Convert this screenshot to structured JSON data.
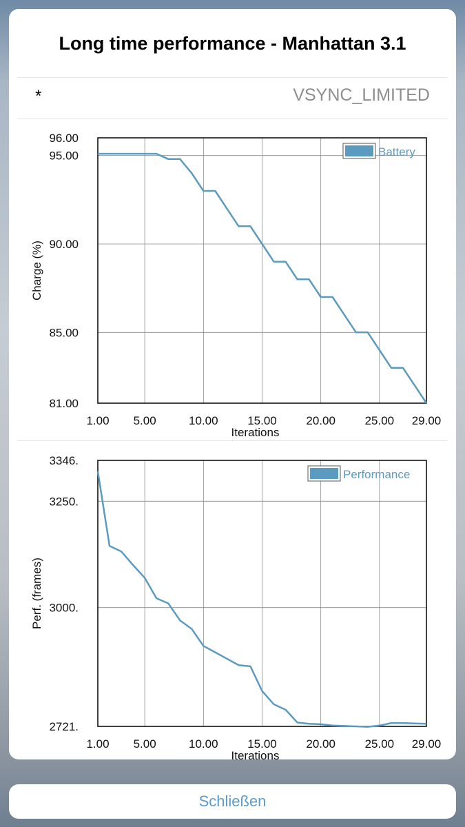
{
  "dialog": {
    "title": "Long time performance - Manhattan 3.1",
    "info_marker": "*",
    "info_mode": "VSYNC_LIMITED",
    "close_label": "Schließen"
  },
  "colors": {
    "series": "#5b9bc0",
    "accent": "#5c9bcf"
  },
  "chart_data": [
    {
      "type": "line",
      "ylabel": "Charge (%)",
      "xlabel": "Iterations",
      "legend": "Battery",
      "legend_position": "top-right",
      "grid": true,
      "xlim": [
        1,
        29
      ],
      "ylim": [
        81,
        96
      ],
      "x_ticks": [
        1,
        5,
        10,
        15,
        20,
        25,
        29
      ],
      "x_tick_labels": [
        "1.00",
        "5.00",
        "10.00",
        "15.00",
        "20.00",
        "25.00",
        "29.00"
      ],
      "y_ticks": [
        81,
        85,
        90,
        95,
        96
      ],
      "y_tick_labels": [
        "81.00",
        "85.00",
        "90.00",
        "95.00",
        "96.00"
      ],
      "series": [
        {
          "name": "Battery",
          "x": [
            1,
            2,
            3,
            4,
            5,
            6,
            7,
            8,
            9,
            10,
            11,
            12,
            13,
            14,
            15,
            16,
            17,
            18,
            19,
            20,
            21,
            22,
            23,
            24,
            25,
            26,
            27,
            28,
            29
          ],
          "values": [
            95.1,
            95.1,
            95.1,
            95.1,
            95.1,
            95.1,
            94.8,
            94.8,
            94.0,
            93.0,
            93.0,
            92.0,
            91.0,
            91.0,
            90.0,
            89.0,
            89.0,
            88.0,
            88.0,
            87.0,
            87.0,
            86.0,
            85.0,
            85.0,
            84.0,
            83.0,
            83.0,
            82.0,
            81.0
          ]
        }
      ]
    },
    {
      "type": "line",
      "ylabel": "Perf. (frames)",
      "xlabel": "Iterations",
      "legend": "Performance",
      "legend_position": "top-right",
      "grid": true,
      "xlim": [
        1,
        29
      ],
      "ylim": [
        2721,
        3346
      ],
      "x_ticks": [
        1,
        5,
        10,
        15,
        20,
        25,
        29
      ],
      "x_tick_labels": [
        "1.00",
        "5.00",
        "10.00",
        "15.00",
        "20.00",
        "25.00",
        "29.00"
      ],
      "y_ticks": [
        2721,
        3000,
        3250,
        3346
      ],
      "y_tick_labels": [
        "2721.",
        "3000.",
        "3250.",
        "3346."
      ],
      "series": [
        {
          "name": "Performance",
          "x": [
            1,
            2,
            3,
            4,
            5,
            6,
            7,
            8,
            9,
            10,
            11,
            12,
            13,
            14,
            15,
            16,
            17,
            18,
            19,
            20,
            21,
            22,
            23,
            24,
            25,
            26,
            27,
            28,
            29
          ],
          "values": [
            3320,
            3145,
            3132,
            3100,
            3070,
            3022,
            3010,
            2970,
            2950,
            2910,
            2895,
            2880,
            2865,
            2862,
            2804,
            2773,
            2760,
            2730,
            2727,
            2726,
            2723,
            2722,
            2721,
            2720,
            2723,
            2729,
            2729,
            2728,
            2727
          ]
        }
      ]
    }
  ]
}
